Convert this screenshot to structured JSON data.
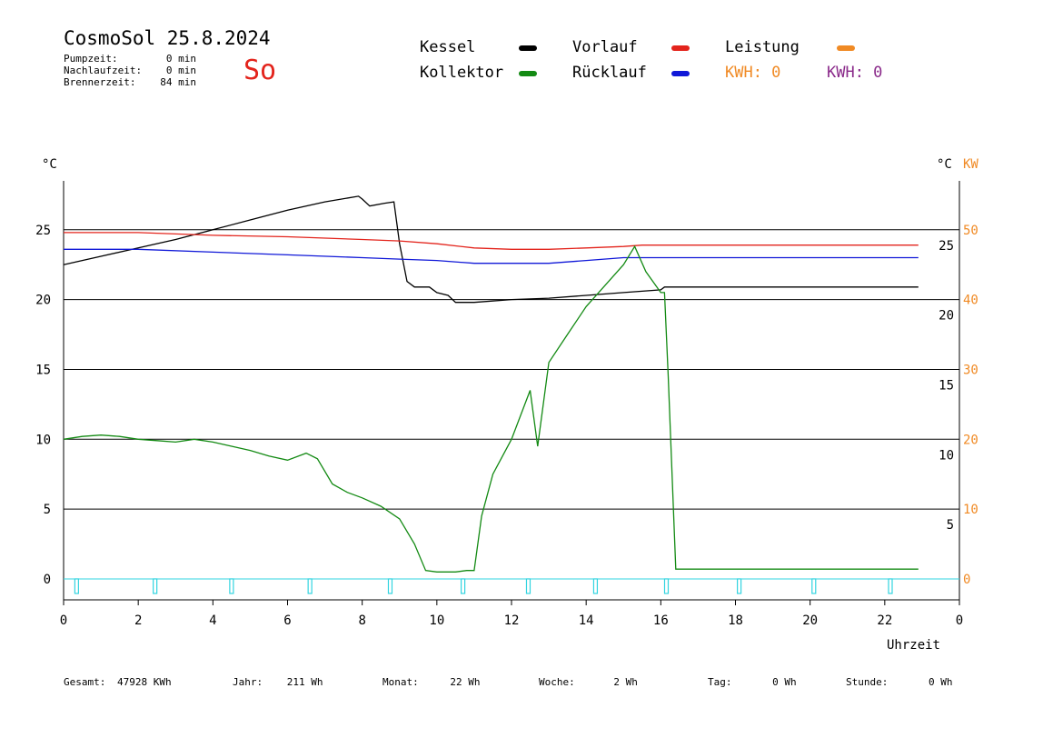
{
  "header": {
    "title": "CosmoSol 25.8.2024",
    "day": "So",
    "stats": [
      {
        "label": "Pumpzeit:",
        "value": "0 min"
      },
      {
        "label": "Nachlaufzeit:",
        "value": "0 min"
      },
      {
        "label": "Brennerzeit:",
        "value": "84 min"
      }
    ]
  },
  "legend": {
    "kessel": {
      "label": "Kessel",
      "color": "#000000"
    },
    "vorlauf": {
      "label": "Vorlauf",
      "color": "#e3241c"
    },
    "leistung": {
      "label": "Leistung",
      "color": "#f08a24"
    },
    "kollektor": {
      "label": "Kollektor",
      "color": "#138a13"
    },
    "ruecklauf": {
      "label": "Rücklauf",
      "color": "#1018d8"
    },
    "kwh1": {
      "label": "KWH: 0",
      "color": "#f08a24"
    },
    "kwh2": {
      "label": "KWH: 0",
      "color": "#8a2a8a"
    }
  },
  "footer": [
    {
      "label": "Gesamt:",
      "value": "47928 KWh"
    },
    {
      "label": "Jahr:",
      "value": "211 Wh"
    },
    {
      "label": "Monat:",
      "value": "22 Wh"
    },
    {
      "label": "Woche:",
      "value": "2 Wh"
    },
    {
      "label": "Tag:",
      "value": "0 Wh"
    },
    {
      "label": "Stunde:",
      "value": "0 Wh"
    }
  ],
  "chart_data": {
    "type": "line",
    "xlabel": "Uhrzeit",
    "ylabel_left": "°C",
    "ylabel_right": "°C",
    "ylabel_right2": "KW",
    "xlim": [
      0,
      24
    ],
    "ylim": [
      -1.5,
      28.5
    ],
    "y2lim": [
      -3,
      57
    ],
    "x_ticks": [
      "0",
      "2",
      "4",
      "6",
      "8",
      "10",
      "12",
      "14",
      "16",
      "18",
      "20",
      "22",
      "0"
    ],
    "y_ticks_left": [
      "0",
      "5",
      "10",
      "15",
      "20",
      "25"
    ],
    "y_ticks_right": [
      "5",
      "10",
      "15",
      "20",
      "25"
    ],
    "y_ticks_right2": [
      "0",
      "10",
      "20",
      "30",
      "40",
      "50"
    ],
    "grid": "horizontal",
    "series": [
      {
        "name": "Kessel",
        "color": "#000000",
        "x": [
          0,
          1,
          2,
          3,
          4,
          5,
          6,
          7,
          7.9,
          8.0,
          8.2,
          8.6,
          8.85,
          9.0,
          9.2,
          9.4,
          9.8,
          10.0,
          10.3,
          10.5,
          11,
          12,
          13,
          14,
          15,
          15.5,
          16,
          16.1,
          17,
          18,
          19,
          20,
          21,
          22,
          22.9
        ],
        "y": [
          22.5,
          23.1,
          23.7,
          24.3,
          25.0,
          25.7,
          26.4,
          27.0,
          27.4,
          27.2,
          26.7,
          26.9,
          27.0,
          24.0,
          21.3,
          20.9,
          20.9,
          20.5,
          20.3,
          19.8,
          19.8,
          20.0,
          20.1,
          20.3,
          20.5,
          20.6,
          20.7,
          20.9,
          20.9,
          20.9,
          20.9,
          20.9,
          20.9,
          20.9,
          20.9
        ]
      },
      {
        "name": "Vorlauf",
        "color": "#e3241c",
        "x": [
          0,
          2,
          4,
          6,
          8,
          9,
          10,
          11,
          12,
          13,
          14,
          15,
          15.5,
          16,
          18,
          20,
          22,
          22.9
        ],
        "y": [
          24.8,
          24.8,
          24.6,
          24.5,
          24.3,
          24.2,
          24.0,
          23.7,
          23.6,
          23.6,
          23.7,
          23.8,
          23.9,
          23.9,
          23.9,
          23.9,
          23.9,
          23.9
        ]
      },
      {
        "name": "Rücklauf",
        "color": "#1018d8",
        "x": [
          0,
          2,
          4,
          6,
          8,
          9,
          10,
          11,
          12,
          13,
          14,
          15,
          15.5,
          16,
          18,
          20,
          22,
          22.9
        ],
        "y": [
          23.6,
          23.6,
          23.4,
          23.2,
          23.0,
          22.9,
          22.8,
          22.6,
          22.6,
          22.6,
          22.8,
          23.0,
          23.0,
          23.0,
          23.0,
          23.0,
          23.0,
          23.0
        ]
      },
      {
        "name": "Kollektor",
        "color": "#138a13",
        "x": [
          0,
          0.5,
          1,
          1.5,
          2,
          2.5,
          3,
          3.5,
          4,
          4.5,
          5,
          5.5,
          6,
          6.5,
          6.8,
          7.2,
          7.6,
          8,
          8.5,
          9,
          9.4,
          9.7,
          10,
          10.5,
          10.8,
          11,
          11.2,
          11.5,
          12,
          12.5,
          12.7,
          13,
          13.5,
          14,
          14.5,
          15,
          15.3,
          15.6,
          16,
          16.1,
          16.2,
          16.4,
          17,
          18,
          19,
          20,
          21,
          22,
          22.9
        ],
        "y": [
          10.0,
          10.2,
          10.3,
          10.2,
          10.0,
          9.9,
          9.8,
          10.0,
          9.8,
          9.5,
          9.2,
          8.8,
          8.5,
          9.0,
          8.6,
          6.8,
          6.2,
          5.8,
          5.2,
          4.3,
          2.5,
          0.6,
          0.5,
          0.5,
          0.6,
          0.6,
          4.5,
          7.5,
          10.0,
          13.5,
          9.5,
          15.5,
          17.5,
          19.5,
          21.0,
          22.5,
          23.8,
          22.0,
          20.5,
          20.5,
          14.5,
          0.7,
          0.7,
          0.7,
          0.7,
          0.7,
          0.7,
          0.7,
          0.7
        ]
      },
      {
        "name": "Leistung",
        "color": "#f08a24",
        "x": [],
        "y": []
      }
    ],
    "pump_markers_x": [
      0.35,
      2.45,
      4.5,
      6.6,
      8.75,
      10.7,
      12.45,
      14.25,
      16.15,
      18.1,
      20.1,
      22.15
    ]
  }
}
